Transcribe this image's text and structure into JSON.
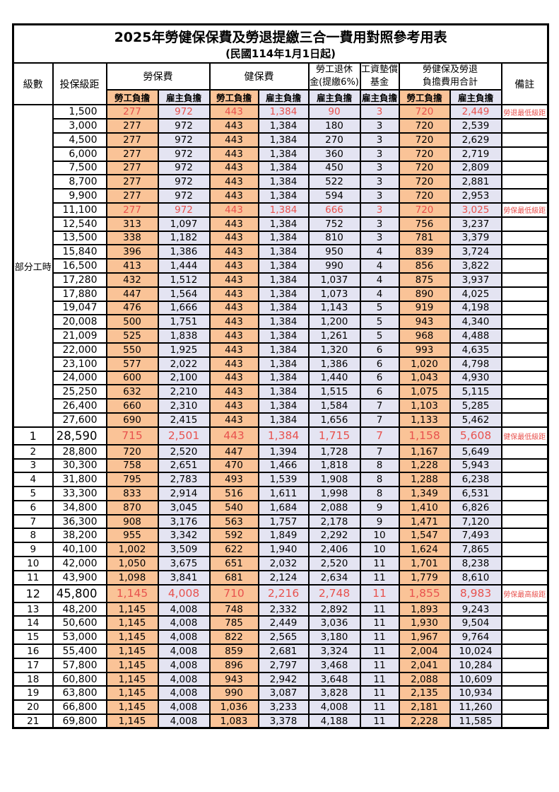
{
  "title": "2025年勞健保保費及勞退提繳三合一費用對照參考用表",
  "subtitle": "(民國114年1月1日起)",
  "colors": {
    "employee_bg": "#FAC397",
    "employer_bg": "#E4E4F2",
    "highlight_red": "#E8524E",
    "border": "#000000"
  },
  "header": {
    "level": "級數",
    "bracket": "投保級距",
    "labor_insurance": "勞保費",
    "health_insurance": "健保費",
    "pension_line1": "勞工退休",
    "pension_line2": "金(提繳6%)",
    "wage_fund_line1": "工資墊償",
    "wage_fund_line2": "基金",
    "total_line1": "勞健保及勞退",
    "total_line2": "負擔費用合計",
    "remark": "備註",
    "employee_burden": "勞工負擔",
    "employer_burden": "雇主負擔",
    "part_time_label": "部分工時",
    "part_time_span": 23
  },
  "rows": [
    {
      "level": "",
      "bracket": "1,500",
      "values": [
        "277",
        "972",
        "443",
        "1,384",
        "90",
        "3",
        "720",
        "2,449"
      ],
      "remark": "勞退最低級距",
      "red": true,
      "big": false
    },
    {
      "level": "",
      "bracket": "3,000",
      "values": [
        "277",
        "972",
        "443",
        "1,384",
        "180",
        "3",
        "720",
        "2,539"
      ],
      "remark": "",
      "red": false,
      "big": false
    },
    {
      "level": "",
      "bracket": "4,500",
      "values": [
        "277",
        "972",
        "443",
        "1,384",
        "270",
        "3",
        "720",
        "2,629"
      ],
      "remark": "",
      "red": false,
      "big": false
    },
    {
      "level": "",
      "bracket": "6,000",
      "values": [
        "277",
        "972",
        "443",
        "1,384",
        "360",
        "3",
        "720",
        "2,719"
      ],
      "remark": "",
      "red": false,
      "big": false
    },
    {
      "level": "",
      "bracket": "7,500",
      "values": [
        "277",
        "972",
        "443",
        "1,384",
        "450",
        "3",
        "720",
        "2,809"
      ],
      "remark": "",
      "red": false,
      "big": false
    },
    {
      "level": "",
      "bracket": "8,700",
      "values": [
        "277",
        "972",
        "443",
        "1,384",
        "522",
        "3",
        "720",
        "2,881"
      ],
      "remark": "",
      "red": false,
      "big": false
    },
    {
      "level": "",
      "bracket": "9,900",
      "values": [
        "277",
        "972",
        "443",
        "1,384",
        "594",
        "3",
        "720",
        "2,953"
      ],
      "remark": "",
      "red": false,
      "big": false
    },
    {
      "level": "",
      "bracket": "11,100",
      "values": [
        "277",
        "972",
        "443",
        "1,384",
        "666",
        "3",
        "720",
        "3,025"
      ],
      "remark": "勞保最低級距",
      "red": true,
      "big": false
    },
    {
      "level": "",
      "bracket": "12,540",
      "values": [
        "313",
        "1,097",
        "443",
        "1,384",
        "752",
        "3",
        "756",
        "3,237"
      ],
      "remark": "",
      "red": false,
      "big": false
    },
    {
      "level": "",
      "bracket": "13,500",
      "values": [
        "338",
        "1,182",
        "443",
        "1,384",
        "810",
        "3",
        "781",
        "3,379"
      ],
      "remark": "",
      "red": false,
      "big": false
    },
    {
      "level": "",
      "bracket": "15,840",
      "values": [
        "396",
        "1,386",
        "443",
        "1,384",
        "950",
        "4",
        "839",
        "3,724"
      ],
      "remark": "",
      "red": false,
      "big": false
    },
    {
      "level": "",
      "bracket": "16,500",
      "values": [
        "413",
        "1,444",
        "443",
        "1,384",
        "990",
        "4",
        "856",
        "3,822"
      ],
      "remark": "",
      "red": false,
      "big": false
    },
    {
      "level": "",
      "bracket": "17,280",
      "values": [
        "432",
        "1,512",
        "443",
        "1,384",
        "1,037",
        "4",
        "875",
        "3,937"
      ],
      "remark": "",
      "red": false,
      "big": false
    },
    {
      "level": "",
      "bracket": "17,880",
      "values": [
        "447",
        "1,564",
        "443",
        "1,384",
        "1,073",
        "4",
        "890",
        "4,025"
      ],
      "remark": "",
      "red": false,
      "big": false
    },
    {
      "level": "",
      "bracket": "19,047",
      "values": [
        "476",
        "1,666",
        "443",
        "1,384",
        "1,143",
        "5",
        "919",
        "4,198"
      ],
      "remark": "",
      "red": false,
      "big": false
    },
    {
      "level": "",
      "bracket": "20,008",
      "values": [
        "500",
        "1,751",
        "443",
        "1,384",
        "1,200",
        "5",
        "943",
        "4,340"
      ],
      "remark": "",
      "red": false,
      "big": false
    },
    {
      "level": "",
      "bracket": "21,009",
      "values": [
        "525",
        "1,838",
        "443",
        "1,384",
        "1,261",
        "5",
        "968",
        "4,488"
      ],
      "remark": "",
      "red": false,
      "big": false
    },
    {
      "level": "",
      "bracket": "22,000",
      "values": [
        "550",
        "1,925",
        "443",
        "1,384",
        "1,320",
        "6",
        "993",
        "4,635"
      ],
      "remark": "",
      "red": false,
      "big": false
    },
    {
      "level": "",
      "bracket": "23,100",
      "values": [
        "577",
        "2,022",
        "443",
        "1,384",
        "1,386",
        "6",
        "1,020",
        "4,798"
      ],
      "remark": "",
      "red": false,
      "big": false
    },
    {
      "level": "",
      "bracket": "24,000",
      "values": [
        "600",
        "2,100",
        "443",
        "1,384",
        "1,440",
        "6",
        "1,043",
        "4,930"
      ],
      "remark": "",
      "red": false,
      "big": false
    },
    {
      "level": "",
      "bracket": "25,250",
      "values": [
        "632",
        "2,210",
        "443",
        "1,384",
        "1,515",
        "6",
        "1,075",
        "5,115"
      ],
      "remark": "",
      "red": false,
      "big": false
    },
    {
      "level": "",
      "bracket": "26,400",
      "values": [
        "660",
        "2,310",
        "443",
        "1,384",
        "1,584",
        "7",
        "1,103",
        "5,285"
      ],
      "remark": "",
      "red": false,
      "big": false
    },
    {
      "level": "",
      "bracket": "27,600",
      "values": [
        "690",
        "2,415",
        "443",
        "1,384",
        "1,656",
        "7",
        "1,133",
        "5,462"
      ],
      "remark": "",
      "red": false,
      "big": false
    },
    {
      "level": "1",
      "bracket": "28,590",
      "values": [
        "715",
        "2,501",
        "443",
        "1,384",
        "1,715",
        "7",
        "1,158",
        "5,608"
      ],
      "remark": "健保最低級距",
      "red": true,
      "big": true
    },
    {
      "level": "2",
      "bracket": "28,800",
      "values": [
        "720",
        "2,520",
        "447",
        "1,394",
        "1,728",
        "7",
        "1,167",
        "5,649"
      ],
      "remark": "",
      "red": false,
      "big": false
    },
    {
      "level": "3",
      "bracket": "30,300",
      "values": [
        "758",
        "2,651",
        "470",
        "1,466",
        "1,818",
        "8",
        "1,228",
        "5,943"
      ],
      "remark": "",
      "red": false,
      "big": false
    },
    {
      "level": "4",
      "bracket": "31,800",
      "values": [
        "795",
        "2,783",
        "493",
        "1,539",
        "1,908",
        "8",
        "1,288",
        "6,238"
      ],
      "remark": "",
      "red": false,
      "big": false
    },
    {
      "level": "5",
      "bracket": "33,300",
      "values": [
        "833",
        "2,914",
        "516",
        "1,611",
        "1,998",
        "8",
        "1,349",
        "6,531"
      ],
      "remark": "",
      "red": false,
      "big": false
    },
    {
      "level": "6",
      "bracket": "34,800",
      "values": [
        "870",
        "3,045",
        "540",
        "1,684",
        "2,088",
        "9",
        "1,410",
        "6,826"
      ],
      "remark": "",
      "red": false,
      "big": false
    },
    {
      "level": "7",
      "bracket": "36,300",
      "values": [
        "908",
        "3,176",
        "563",
        "1,757",
        "2,178",
        "9",
        "1,471",
        "7,120"
      ],
      "remark": "",
      "red": false,
      "big": false
    },
    {
      "level": "8",
      "bracket": "38,200",
      "values": [
        "955",
        "3,342",
        "592",
        "1,849",
        "2,292",
        "10",
        "1,547",
        "7,493"
      ],
      "remark": "",
      "red": false,
      "big": false
    },
    {
      "level": "9",
      "bracket": "40,100",
      "values": [
        "1,002",
        "3,509",
        "622",
        "1,940",
        "2,406",
        "10",
        "1,624",
        "7,865"
      ],
      "remark": "",
      "red": false,
      "big": false
    },
    {
      "level": "10",
      "bracket": "42,000",
      "values": [
        "1,050",
        "3,675",
        "651",
        "2,032",
        "2,520",
        "11",
        "1,701",
        "8,238"
      ],
      "remark": "",
      "red": false,
      "big": false
    },
    {
      "level": "11",
      "bracket": "43,900",
      "values": [
        "1,098",
        "3,841",
        "681",
        "2,124",
        "2,634",
        "11",
        "1,779",
        "8,610"
      ],
      "remark": "",
      "red": false,
      "big": false
    },
    {
      "level": "12",
      "bracket": "45,800",
      "values": [
        "1,145",
        "4,008",
        "710",
        "2,216",
        "2,748",
        "11",
        "1,855",
        "8,983"
      ],
      "remark": "勞保最高級距",
      "red": true,
      "big": true
    },
    {
      "level": "13",
      "bracket": "48,200",
      "values": [
        "1,145",
        "4,008",
        "748",
        "2,332",
        "2,892",
        "11",
        "1,893",
        "9,243"
      ],
      "remark": "",
      "red": false,
      "big": false
    },
    {
      "level": "14",
      "bracket": "50,600",
      "values": [
        "1,145",
        "4,008",
        "785",
        "2,449",
        "3,036",
        "11",
        "1,930",
        "9,504"
      ],
      "remark": "",
      "red": false,
      "big": false
    },
    {
      "level": "15",
      "bracket": "53,000",
      "values": [
        "1,145",
        "4,008",
        "822",
        "2,565",
        "3,180",
        "11",
        "1,967",
        "9,764"
      ],
      "remark": "",
      "red": false,
      "big": false
    },
    {
      "level": "16",
      "bracket": "55,400",
      "values": [
        "1,145",
        "4,008",
        "859",
        "2,681",
        "3,324",
        "11",
        "2,004",
        "10,024"
      ],
      "remark": "",
      "red": false,
      "big": false
    },
    {
      "level": "17",
      "bracket": "57,800",
      "values": [
        "1,145",
        "4,008",
        "896",
        "2,797",
        "3,468",
        "11",
        "2,041",
        "10,284"
      ],
      "remark": "",
      "red": false,
      "big": false
    },
    {
      "level": "18",
      "bracket": "60,800",
      "values": [
        "1,145",
        "4,008",
        "943",
        "2,942",
        "3,648",
        "11",
        "2,088",
        "10,609"
      ],
      "remark": "",
      "red": false,
      "big": false
    },
    {
      "level": "19",
      "bracket": "63,800",
      "values": [
        "1,145",
        "4,008",
        "990",
        "3,087",
        "3,828",
        "11",
        "2,135",
        "10,934"
      ],
      "remark": "",
      "red": false,
      "big": false
    },
    {
      "level": "20",
      "bracket": "66,800",
      "values": [
        "1,145",
        "4,008",
        "1,036",
        "3,233",
        "4,008",
        "11",
        "2,181",
        "11,260"
      ],
      "remark": "",
      "red": false,
      "big": false
    },
    {
      "level": "21",
      "bracket": "69,800",
      "values": [
        "1,145",
        "4,008",
        "1,083",
        "3,378",
        "4,188",
        "11",
        "2,228",
        "11,585"
      ],
      "remark": "",
      "red": false,
      "big": false
    }
  ],
  "value_column_kinds": [
    "emp",
    "er",
    "emp",
    "er",
    "er",
    "er",
    "emp",
    "er"
  ]
}
